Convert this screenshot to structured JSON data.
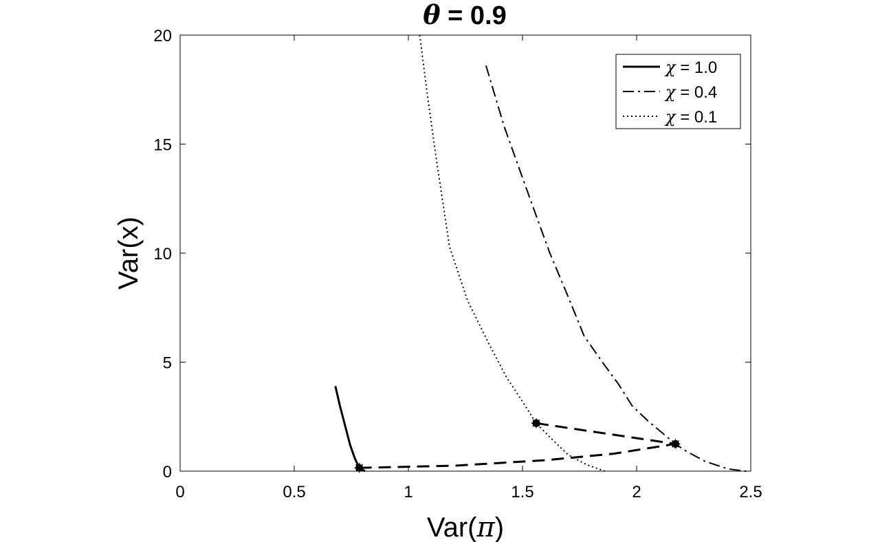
{
  "chart_data": {
    "type": "line",
    "title_symbol": "θ",
    "title_value": " = 0.9",
    "xlabel_prefix": "Var(",
    "xlabel_symbol": "π",
    "xlabel_suffix": ")",
    "ylabel": "Var(x)",
    "xlim": [
      0,
      2.5
    ],
    "ylim": [
      0,
      20
    ],
    "xticks": [
      0,
      0.5,
      1,
      1.5,
      2,
      2.5
    ],
    "xtick_labels": [
      "0",
      "0.5",
      "1",
      "1.5",
      "2",
      "2.5"
    ],
    "yticks": [
      0,
      5,
      10,
      15,
      20
    ],
    "ytick_labels": [
      "0",
      "5",
      "10",
      "15",
      "20"
    ],
    "grid": false,
    "legend_position": "top-right",
    "series": [
      {
        "name": "χ = 1.0",
        "legend_symbol": "χ",
        "legend_value": " = 1.0",
        "style": "solid",
        "points": [
          [
            0.68,
            3.9
          ],
          [
            0.7,
            3.0
          ],
          [
            0.72,
            2.2
          ],
          [
            0.745,
            1.2
          ],
          [
            0.765,
            0.6
          ],
          [
            0.785,
            0.15
          ],
          [
            0.81,
            0.0
          ]
        ]
      },
      {
        "name": "χ = 0.4",
        "legend_symbol": "χ",
        "legend_value": " = 0.4",
        "style": "dashdot",
        "points": [
          [
            1.34,
            18.6
          ],
          [
            1.42,
            15.8
          ],
          [
            1.55,
            12.0
          ],
          [
            1.62,
            10.0
          ],
          [
            1.7,
            8.0
          ],
          [
            1.77,
            6.2
          ],
          [
            1.85,
            5.0
          ],
          [
            1.92,
            4.0
          ],
          [
            1.98,
            3.0
          ],
          [
            2.05,
            2.3
          ],
          [
            2.13,
            1.6
          ],
          [
            2.17,
            1.25
          ],
          [
            2.22,
            0.9
          ],
          [
            2.3,
            0.45
          ],
          [
            2.4,
            0.1
          ],
          [
            2.48,
            0.0
          ]
        ]
      },
      {
        "name": "χ = 0.1",
        "legend_symbol": "χ",
        "legend_value": " = 0.1",
        "style": "dotted",
        "points": [
          [
            1.05,
            20.0
          ],
          [
            1.08,
            17.5
          ],
          [
            1.12,
            14.5
          ],
          [
            1.18,
            10.3
          ],
          [
            1.26,
            7.8
          ],
          [
            1.35,
            5.9
          ],
          [
            1.43,
            4.3
          ],
          [
            1.5,
            3.2
          ],
          [
            1.56,
            2.2
          ],
          [
            1.63,
            1.45
          ],
          [
            1.7,
            0.75
          ],
          [
            1.78,
            0.3
          ],
          [
            1.86,
            0.0
          ]
        ]
      }
    ],
    "connector": {
      "style": "dashed",
      "markers": [
        [
          0.785,
          0.15
        ],
        [
          1.56,
          2.2
        ],
        [
          2.17,
          1.25
        ]
      ],
      "segments": [
        [
          [
            1.56,
            2.2
          ],
          [
            2.17,
            1.25
          ]
        ],
        [
          [
            0.785,
            0.15
          ],
          [
            1.2,
            0.25
          ],
          [
            1.6,
            0.5
          ],
          [
            1.9,
            0.8
          ],
          [
            2.17,
            1.25
          ]
        ]
      ]
    }
  }
}
